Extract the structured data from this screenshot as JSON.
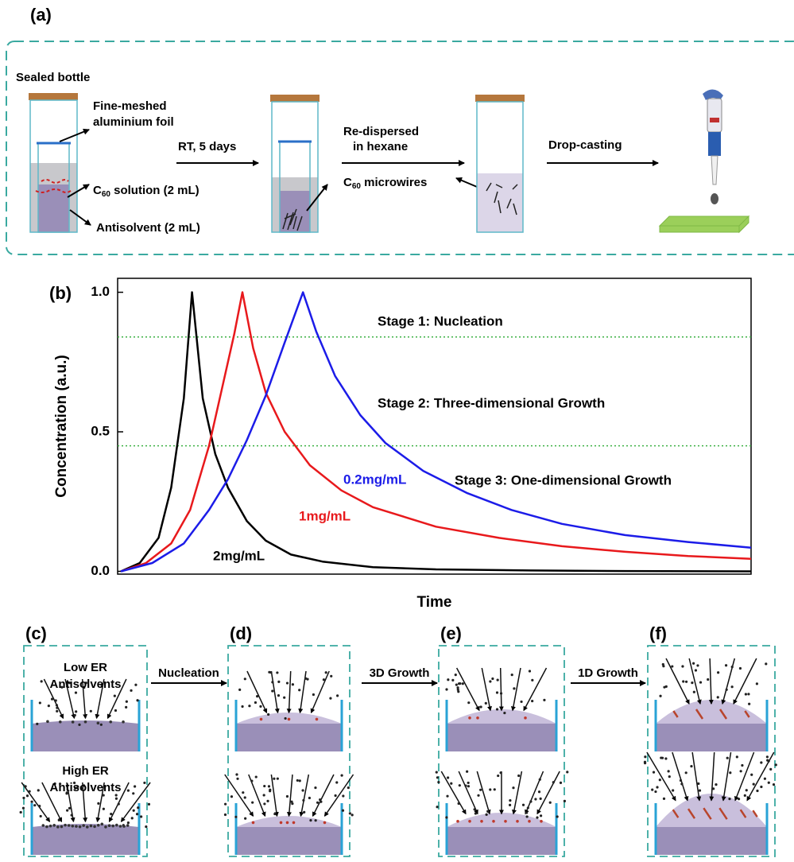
{
  "panel_a": {
    "label": "(a)",
    "sealed_bottle": "Sealed bottle",
    "foil": [
      "Fine-meshed",
      "aluminium foil"
    ],
    "solution": {
      "c": "C",
      "sub": "60",
      "rest": " solution (2 mL)"
    },
    "antisolvent": "Antisolvent (2 mL)",
    "step1": "RT, 5 days",
    "redispersed": [
      "Re-dispersed",
      "in hexane"
    ],
    "microwires": {
      "c": "C",
      "sub": "60",
      "rest": " microwires"
    },
    "step3": "Drop-casting"
  },
  "chart_data": {
    "type": "line",
    "label": "(b)",
    "x_label": "Time",
    "y_label": "Concentration (a.u.)",
    "xlim": [
      -0.5,
      100
    ],
    "ylim": [
      -0.01,
      1.05
    ],
    "yticks": [
      {
        "value": 0,
        "label": "0.0"
      },
      0.5,
      {
        "value": 1,
        "label": "1.0"
      }
    ],
    "reference_lines": {
      "values": [
        0.84,
        0.45
      ],
      "color": "#3cb043"
    },
    "annotations": [
      "Stage 1: Nucleation",
      "Stage 2: Three-dimensional Growth",
      "Stage 3: One-dimensional Growth"
    ],
    "series": [
      {
        "name": "2mg/mL",
        "color": "#000000",
        "x": [
          0,
          3,
          6,
          8,
          10,
          11.3,
          13,
          15,
          17,
          20,
          23,
          27,
          32,
          40,
          50,
          65,
          80,
          100
        ],
        "values": [
          0,
          0.03,
          0.12,
          0.3,
          0.62,
          1.0,
          0.62,
          0.42,
          0.3,
          0.18,
          0.11,
          0.06,
          0.035,
          0.015,
          0.007,
          0.003,
          0.001,
          0
        ]
      },
      {
        "name": "1mg/mL",
        "color": "#e8191c",
        "x": [
          0,
          4,
          8,
          11,
          14,
          16,
          18,
          19.3,
          21,
          23,
          26,
          30,
          35,
          40,
          50,
          60,
          70,
          80,
          90,
          100
        ],
        "values": [
          0,
          0.03,
          0.1,
          0.22,
          0.45,
          0.65,
          0.85,
          1.0,
          0.8,
          0.64,
          0.5,
          0.38,
          0.29,
          0.23,
          0.16,
          0.12,
          0.09,
          0.07,
          0.055,
          0.045
        ]
      },
      {
        "name": "0.2mg/mL",
        "color": "#1c1ce8",
        "x": [
          0,
          5,
          10,
          14,
          17,
          20,
          23,
          26,
          28.9,
          31,
          34,
          38,
          42,
          48,
          55,
          62,
          70,
          80,
          90,
          100
        ],
        "values": [
          0,
          0.03,
          0.1,
          0.22,
          0.33,
          0.47,
          0.63,
          0.82,
          1.0,
          0.86,
          0.7,
          0.56,
          0.46,
          0.36,
          0.28,
          0.22,
          0.17,
          0.13,
          0.105,
          0.085
        ]
      }
    ]
  },
  "panels": [
    {
      "label": "(c)",
      "top": [
        "Low ER",
        "Antisolvents"
      ],
      "bottom": [
        "High ER",
        "Antisolvents"
      ]
    },
    {
      "label": "(d)"
    },
    {
      "label": "(e)"
    },
    {
      "label": "(f)"
    }
  ],
  "transitions": [
    "Nucleation",
    "3D Growth",
    "1D Growth"
  ]
}
